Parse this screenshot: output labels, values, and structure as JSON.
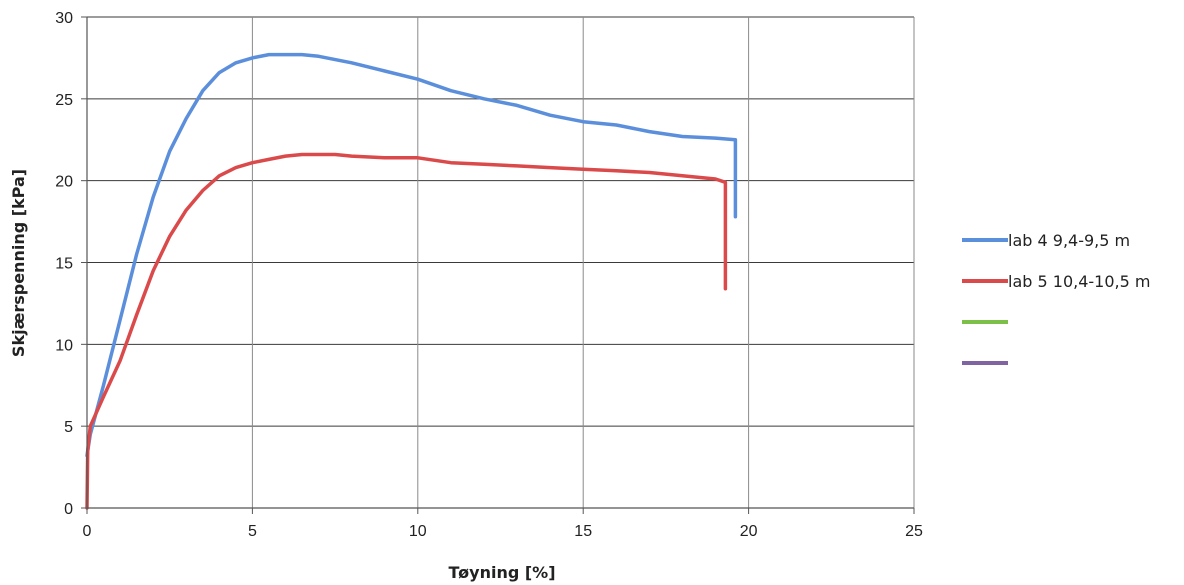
{
  "chart_data": {
    "type": "line",
    "title": "",
    "xlabel": "Tøyning [%]",
    "ylabel": "Skjærspenning [kPa]",
    "xlim": [
      0,
      25
    ],
    "ylim": [
      0,
      30
    ],
    "xticks": [
      0,
      5,
      10,
      15,
      20,
      25
    ],
    "yticks": [
      0,
      5,
      10,
      15,
      20,
      25,
      30
    ],
    "grid": true,
    "legend_position": "right",
    "series": [
      {
        "name": "lab 4 9,4-9,5 m",
        "color": "#5b8fdc",
        "x": [
          0,
          0.1,
          0.5,
          1,
          1.5,
          2,
          2.5,
          3,
          3.5,
          4,
          4.5,
          5,
          5.5,
          6,
          6.5,
          7,
          8,
          9,
          10,
          11,
          12,
          13,
          14,
          15,
          16,
          17,
          18,
          19,
          19.6,
          19.6
        ],
        "y": [
          3.2,
          4.5,
          7.5,
          11.5,
          15.5,
          19,
          21.8,
          23.8,
          25.5,
          26.6,
          27.2,
          27.5,
          27.7,
          27.7,
          27.7,
          27.6,
          27.2,
          26.7,
          26.2,
          25.5,
          25.0,
          24.6,
          24.0,
          23.6,
          23.4,
          23.0,
          22.7,
          22.6,
          22.5,
          17.8
        ]
      },
      {
        "name": "lab 5 10,4-10,5 m",
        "color": "#db4a4a",
        "x": [
          0,
          0.02,
          0.1,
          0.5,
          1,
          1.5,
          2,
          2.5,
          3,
          3.5,
          4,
          4.5,
          5,
          5.5,
          6,
          6.5,
          7,
          7.5,
          8,
          9,
          10,
          11,
          12,
          13,
          14,
          15,
          16,
          17,
          18,
          19,
          19.3,
          19.3
        ],
        "y": [
          0,
          3.5,
          5.0,
          6.8,
          9.0,
          11.8,
          14.5,
          16.6,
          18.2,
          19.4,
          20.3,
          20.8,
          21.1,
          21.3,
          21.5,
          21.6,
          21.6,
          21.6,
          21.5,
          21.4,
          21.4,
          21.1,
          21.0,
          20.9,
          20.8,
          20.7,
          20.6,
          20.5,
          20.3,
          20.1,
          19.9,
          13.4
        ]
      },
      {
        "name": "",
        "color": "#7cc04a",
        "x": [],
        "y": []
      },
      {
        "name": "",
        "color": "#8064a2",
        "x": [],
        "y": []
      }
    ]
  }
}
